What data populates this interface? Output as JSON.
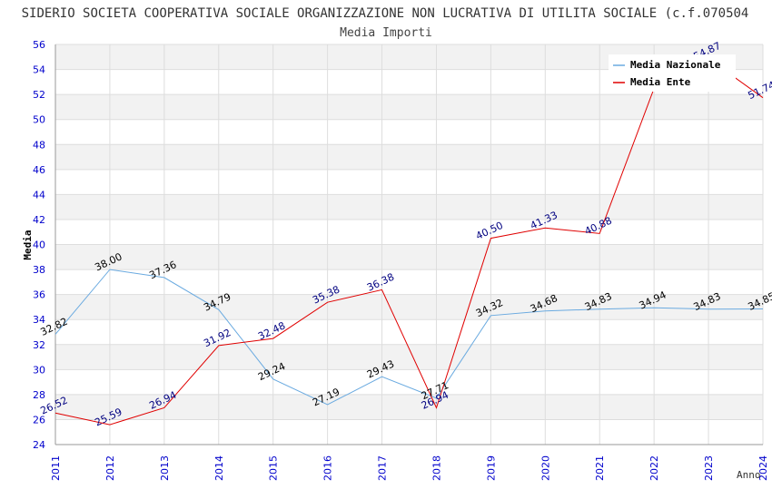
{
  "chart_data": {
    "type": "line",
    "title": "SIDERIO SOCIETA COOPERATIVA SOCIALE ORGANIZZAZIONE NON LUCRATIVA DI UTILITA SOCIALE (c.f.070504",
    "subtitle": "Media Importi",
    "xlabel": "Anno",
    "ylabel": "Media",
    "ylim": [
      24,
      56
    ],
    "ytick_step": 2,
    "grid": true,
    "legend_position": "top-right",
    "x": [
      2011,
      2012,
      2013,
      2014,
      2015,
      2016,
      2017,
      2018,
      2019,
      2020,
      2021,
      2022,
      2023,
      2024
    ],
    "series": [
      {
        "name": "Media Nazionale",
        "color": "#6aaae0",
        "label_color": "#000000",
        "values": [
          32.82,
          38.0,
          37.36,
          34.79,
          29.24,
          27.19,
          29.43,
          27.71,
          34.32,
          34.68,
          34.83,
          34.94,
          34.83,
          34.85
        ],
        "labels": [
          "32.82",
          "38.00",
          "37.36",
          "34.79",
          "29.24",
          "27.19",
          "29.43",
          "27.71",
          "34.32",
          "34.68",
          "34.83",
          "34.94",
          "34.83",
          "34.85"
        ]
      },
      {
        "name": "Media Ente",
        "color": "#e00000",
        "label_color": "#000080",
        "values": [
          26.52,
          25.59,
          26.94,
          31.92,
          32.48,
          35.38,
          36.38,
          26.94,
          40.5,
          41.33,
          40.88,
          52.5,
          54.87,
          51.74
        ],
        "labels": [
          "26.52",
          "25.59",
          "26.94",
          "31.92",
          "32.48",
          "35.38",
          "36.38",
          "26.94",
          "40.50",
          "41.33",
          "40.88",
          "",
          "54.87",
          "51.74"
        ]
      }
    ],
    "colors": {
      "axis_tick_text": "#0000cc",
      "band": "#f2f2f2",
      "gridline": "#dddddd",
      "axis": "#999999",
      "text": "#333333"
    }
  }
}
